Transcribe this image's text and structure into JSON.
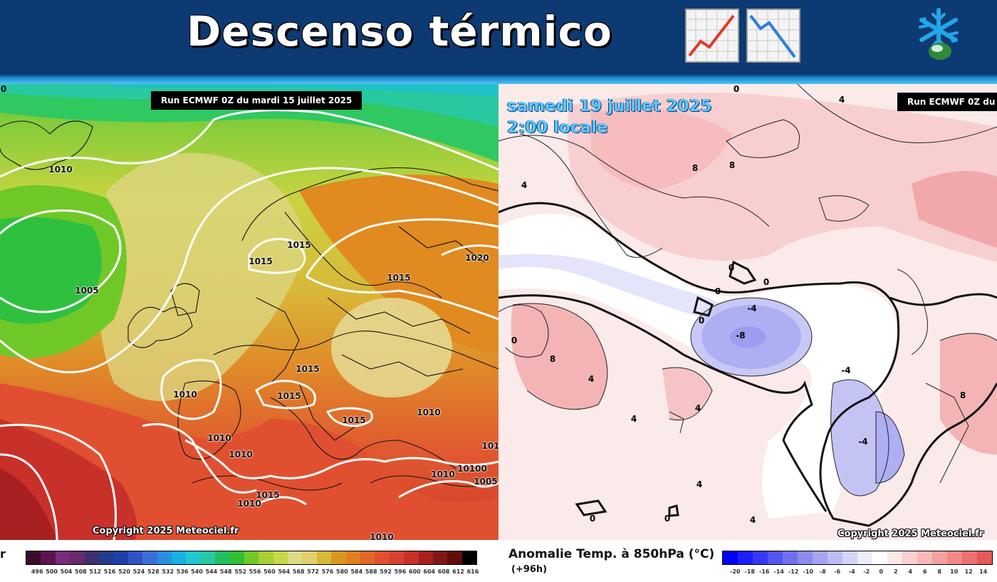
{
  "header": {
    "title": "Descenso térmico",
    "icons": [
      "chart-increasing-icon",
      "chart-decreasing-icon",
      "snowflake-logo-icon"
    ]
  },
  "left_map": {
    "run_label": "Run ECMWF 0Z du mardi 15 juillet 2025",
    "copyright": "Copyright 2025 Meteociel.fr",
    "corner_label": "0",
    "cut_label": "r",
    "pressure_labels": [
      "1010",
      "1005",
      "1015",
      "1015",
      "1015",
      "1020",
      "1015",
      "1015",
      "1010",
      "1010",
      "1010",
      "1010",
      "1015",
      "1015",
      "1010",
      "1010",
      "1010",
      "10100",
      "1005",
      "101",
      "1010"
    ],
    "legend_ticks": [
      "496",
      "500",
      "504",
      "508",
      "512",
      "516",
      "520",
      "524",
      "528",
      "532",
      "536",
      "540",
      "544",
      "548",
      "552",
      "556",
      "560",
      "564",
      "568",
      "572",
      "576",
      "580",
      "584",
      "588",
      "592",
      "596",
      "600",
      "604",
      "608",
      "612",
      "616"
    ]
  },
  "right_map": {
    "date_line1": "samedi 19 juillet 2025",
    "date_line2": "2:00 locale",
    "run_label": "Run ECMWF 0Z du",
    "copyright": "Copyright 2025 Meteociel.fr",
    "anomaly_title": "Anomalie Temp. à 850hPa (°C)",
    "anomaly_sub": "(+96h)",
    "contour_labels": [
      "0",
      "4",
      "4",
      "8",
      "8",
      "0",
      "0",
      "0",
      "0",
      "-4",
      "-8",
      "8",
      "4",
      "4",
      "4",
      "-4",
      "-4",
      "8",
      "4",
      "0",
      "0",
      "4",
      "0"
    ],
    "legend_ticks": [
      "-20",
      "-18",
      "-16",
      "-14",
      "-12",
      "-10",
      "-8",
      "-6",
      "-4",
      "-2",
      "0",
      "2",
      "4",
      "6",
      "8",
      "10",
      "12",
      "14"
    ]
  },
  "colors": {
    "header_bg": "#0e3a73",
    "geopotential_scale": [
      "#3b0b2e",
      "#5a1450",
      "#7a2a7a",
      "#6b2a6b",
      "#3e2f6e",
      "#243a8a",
      "#1f3fa8",
      "#2f52c4",
      "#3a6fd8",
      "#2a8fe0",
      "#18b0e0",
      "#20c8d0",
      "#28c8a0",
      "#20c060",
      "#30c030",
      "#70c828",
      "#a8d030",
      "#c8d848",
      "#dcdc88",
      "#e0d070",
      "#d8b838",
      "#d89820",
      "#e08020",
      "#e06828",
      "#e05030",
      "#d84030",
      "#c83028",
      "#a82020",
      "#801818",
      "#600c0c",
      "#000000"
    ],
    "anomaly_scale": [
      "#0000ff",
      "#1e1efa",
      "#3838f4",
      "#5555f0",
      "#7070ef",
      "#8c8ced",
      "#a4a4f0",
      "#bcbcf4",
      "#d4d4f8",
      "#ececfc",
      "#ffffff",
      "#fde8e8",
      "#fad0d0",
      "#f7b8b8",
      "#f4a0a0",
      "#f08888",
      "#ec7070",
      "#e85858"
    ]
  }
}
